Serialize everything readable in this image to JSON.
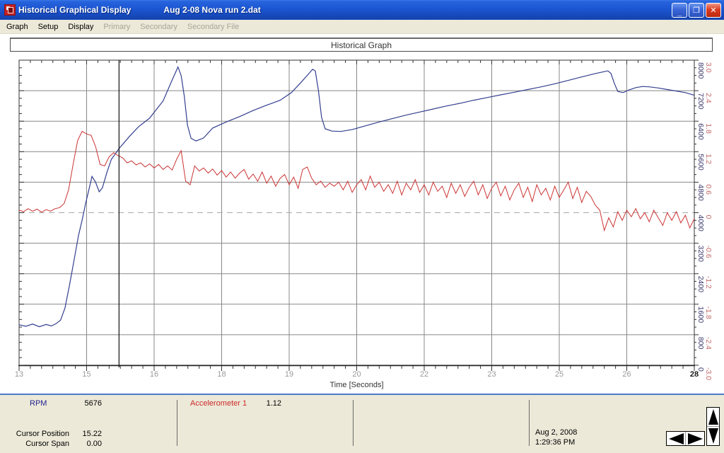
{
  "window": {
    "title_app": "Historical Graphical Display",
    "title_file": "Aug 2-08 Nova run 2.dat",
    "buttons": {
      "minimize": "_",
      "restore": "❐",
      "close": "✕"
    }
  },
  "menu": {
    "items": [
      {
        "label": "Graph",
        "enabled": true
      },
      {
        "label": "Setup",
        "enabled": true
      },
      {
        "label": "Display",
        "enabled": true
      },
      {
        "label": "Primary",
        "enabled": false
      },
      {
        "label": "Secondary",
        "enabled": false
      },
      {
        "label": "Secondary File",
        "enabled": false
      }
    ]
  },
  "chart_data": {
    "type": "line",
    "title": "Historical Graph",
    "xlabel": "Time [Seconds]",
    "x_range": [
      13,
      28
    ],
    "x_tick_step": 1.5,
    "x_tick_labels": [
      "13",
      "15",
      "16",
      "18",
      "19",
      "20",
      "22",
      "23",
      "25",
      "26",
      "28"
    ],
    "grid": true,
    "grid_color": "#888888",
    "cursor_time": 15.22,
    "axes": {
      "rpm": {
        "range": [
          0,
          8000
        ],
        "tick_step": 800,
        "labels": [
          "0",
          "800",
          "1600",
          "2400",
          "3200",
          "4000",
          "4800",
          "5600",
          "6400",
          "7200",
          "8000"
        ],
        "label_color": "#3b3b6e"
      },
      "accel": {
        "range": [
          -3.0,
          3.0
        ],
        "tick_step": 0.6,
        "labels": [
          "-3.0",
          "-2.4",
          "-1.8",
          "-1.2",
          "-0.6",
          "0",
          "0.6",
          "1.2",
          "1.8",
          "2.4",
          "3.0"
        ],
        "label_color": "#c46a6a"
      }
    },
    "series": [
      {
        "name": "RPM",
        "axis": "rpm",
        "color": "#333f8f",
        "points": [
          [
            13.0,
            1060
          ],
          [
            13.15,
            1020
          ],
          [
            13.3,
            1080
          ],
          [
            13.45,
            1010
          ],
          [
            13.6,
            1070
          ],
          [
            13.72,
            1030
          ],
          [
            13.82,
            1090
          ],
          [
            13.92,
            1180
          ],
          [
            14.02,
            1500
          ],
          [
            14.12,
            2100
          ],
          [
            14.22,
            2750
          ],
          [
            14.32,
            3400
          ],
          [
            14.4,
            3800
          ],
          [
            14.48,
            4250
          ],
          [
            14.55,
            4600
          ],
          [
            14.62,
            4950
          ],
          [
            14.7,
            4800
          ],
          [
            14.78,
            4550
          ],
          [
            14.85,
            4650
          ],
          [
            14.95,
            5050
          ],
          [
            15.05,
            5400
          ],
          [
            15.22,
            5680
          ],
          [
            15.45,
            6000
          ],
          [
            15.65,
            6250
          ],
          [
            15.9,
            6480
          ],
          [
            16.2,
            6930
          ],
          [
            16.4,
            7480
          ],
          [
            16.53,
            7820
          ],
          [
            16.6,
            7600
          ],
          [
            16.67,
            7050
          ],
          [
            16.74,
            6300
          ],
          [
            16.82,
            5950
          ],
          [
            16.93,
            5880
          ],
          [
            17.1,
            5960
          ],
          [
            17.3,
            6220
          ],
          [
            17.6,
            6380
          ],
          [
            17.9,
            6520
          ],
          [
            18.2,
            6680
          ],
          [
            18.5,
            6820
          ],
          [
            18.8,
            6950
          ],
          [
            19.05,
            7150
          ],
          [
            19.25,
            7400
          ],
          [
            19.4,
            7600
          ],
          [
            19.52,
            7760
          ],
          [
            19.58,
            7720
          ],
          [
            19.65,
            7200
          ],
          [
            19.72,
            6500
          ],
          [
            19.8,
            6200
          ],
          [
            19.95,
            6140
          ],
          [
            20.15,
            6130
          ],
          [
            20.4,
            6180
          ],
          [
            20.7,
            6280
          ],
          [
            21.0,
            6380
          ],
          [
            21.3,
            6470
          ],
          [
            21.6,
            6560
          ],
          [
            21.9,
            6640
          ],
          [
            22.2,
            6720
          ],
          [
            22.5,
            6800
          ],
          [
            22.8,
            6870
          ],
          [
            23.1,
            6950
          ],
          [
            23.4,
            7020
          ],
          [
            23.7,
            7090
          ],
          [
            24.0,
            7160
          ],
          [
            24.3,
            7230
          ],
          [
            24.6,
            7300
          ],
          [
            24.9,
            7380
          ],
          [
            25.2,
            7470
          ],
          [
            25.5,
            7560
          ],
          [
            25.8,
            7650
          ],
          [
            26.0,
            7700
          ],
          [
            26.08,
            7720
          ],
          [
            26.15,
            7650
          ],
          [
            26.22,
            7400
          ],
          [
            26.3,
            7180
          ],
          [
            26.42,
            7150
          ],
          [
            26.55,
            7220
          ],
          [
            26.7,
            7280
          ],
          [
            26.85,
            7310
          ],
          [
            27.0,
            7300
          ],
          [
            27.2,
            7270
          ],
          [
            27.4,
            7230
          ],
          [
            27.6,
            7190
          ],
          [
            27.8,
            7150
          ],
          [
            28.0,
            7080
          ]
        ]
      },
      {
        "name": "Accelerometer 1",
        "axis": "accel",
        "color": "#cc3333",
        "t0": 13.0,
        "dt": 0.1,
        "values": [
          0.05,
          0.02,
          0.08,
          0.03,
          0.07,
          0.01,
          0.06,
          0.03,
          0.08,
          0.1,
          0.18,
          0.45,
          0.95,
          1.42,
          1.6,
          1.55,
          1.52,
          1.3,
          0.95,
          0.92,
          1.1,
          1.18,
          1.12,
          1.08,
          0.98,
          1.02,
          0.94,
          0.98,
          0.9,
          0.96,
          0.88,
          0.95,
          0.85,
          0.92,
          0.84,
          1.05,
          1.22,
          0.62,
          0.55,
          0.92,
          0.82,
          0.88,
          0.78,
          0.86,
          0.74,
          0.83,
          0.7,
          0.8,
          0.68,
          0.78,
          0.85,
          0.66,
          0.76,
          0.62,
          0.8,
          0.58,
          0.72,
          0.52,
          0.68,
          0.75,
          0.55,
          0.7,
          0.48,
          0.85,
          0.9,
          0.68,
          0.55,
          0.62,
          0.5,
          0.58,
          0.52,
          0.6,
          0.45,
          0.62,
          0.4,
          0.55,
          0.65,
          0.45,
          0.72,
          0.5,
          0.6,
          0.42,
          0.55,
          0.38,
          0.62,
          0.35,
          0.58,
          0.45,
          0.65,
          0.4,
          0.55,
          0.35,
          0.6,
          0.42,
          0.52,
          0.3,
          0.58,
          0.38,
          0.55,
          0.32,
          0.5,
          0.62,
          0.35,
          0.55,
          0.28,
          0.48,
          0.6,
          0.33,
          0.52,
          0.25,
          0.45,
          0.58,
          0.3,
          0.5,
          0.22,
          0.55,
          0.35,
          0.48,
          0.25,
          0.52,
          0.3,
          0.45,
          0.6,
          0.28,
          0.5,
          0.2,
          0.42,
          0.32,
          0.15,
          0.05,
          -0.35,
          -0.1,
          -0.28,
          0.02,
          -0.15,
          0.05,
          -0.08,
          0.08,
          -0.12,
          0.0,
          -0.18,
          0.05,
          -0.1,
          -0.25,
          0.0,
          -0.15,
          0.02,
          -0.2,
          -0.05,
          -0.3,
          -0.12
        ]
      }
    ]
  },
  "status_panel": {
    "rpm_label": "RPM",
    "rpm_value": "5676",
    "accel_label": "Accelerometer 1",
    "accel_value": "1.12",
    "cursor_position_label": "Cursor Position",
    "cursor_position_value": "15.22",
    "cursor_span_label": "Cursor Span",
    "cursor_span_value": "0.00",
    "date": "Aug 2, 2008",
    "time": "1:29:36 PM"
  }
}
